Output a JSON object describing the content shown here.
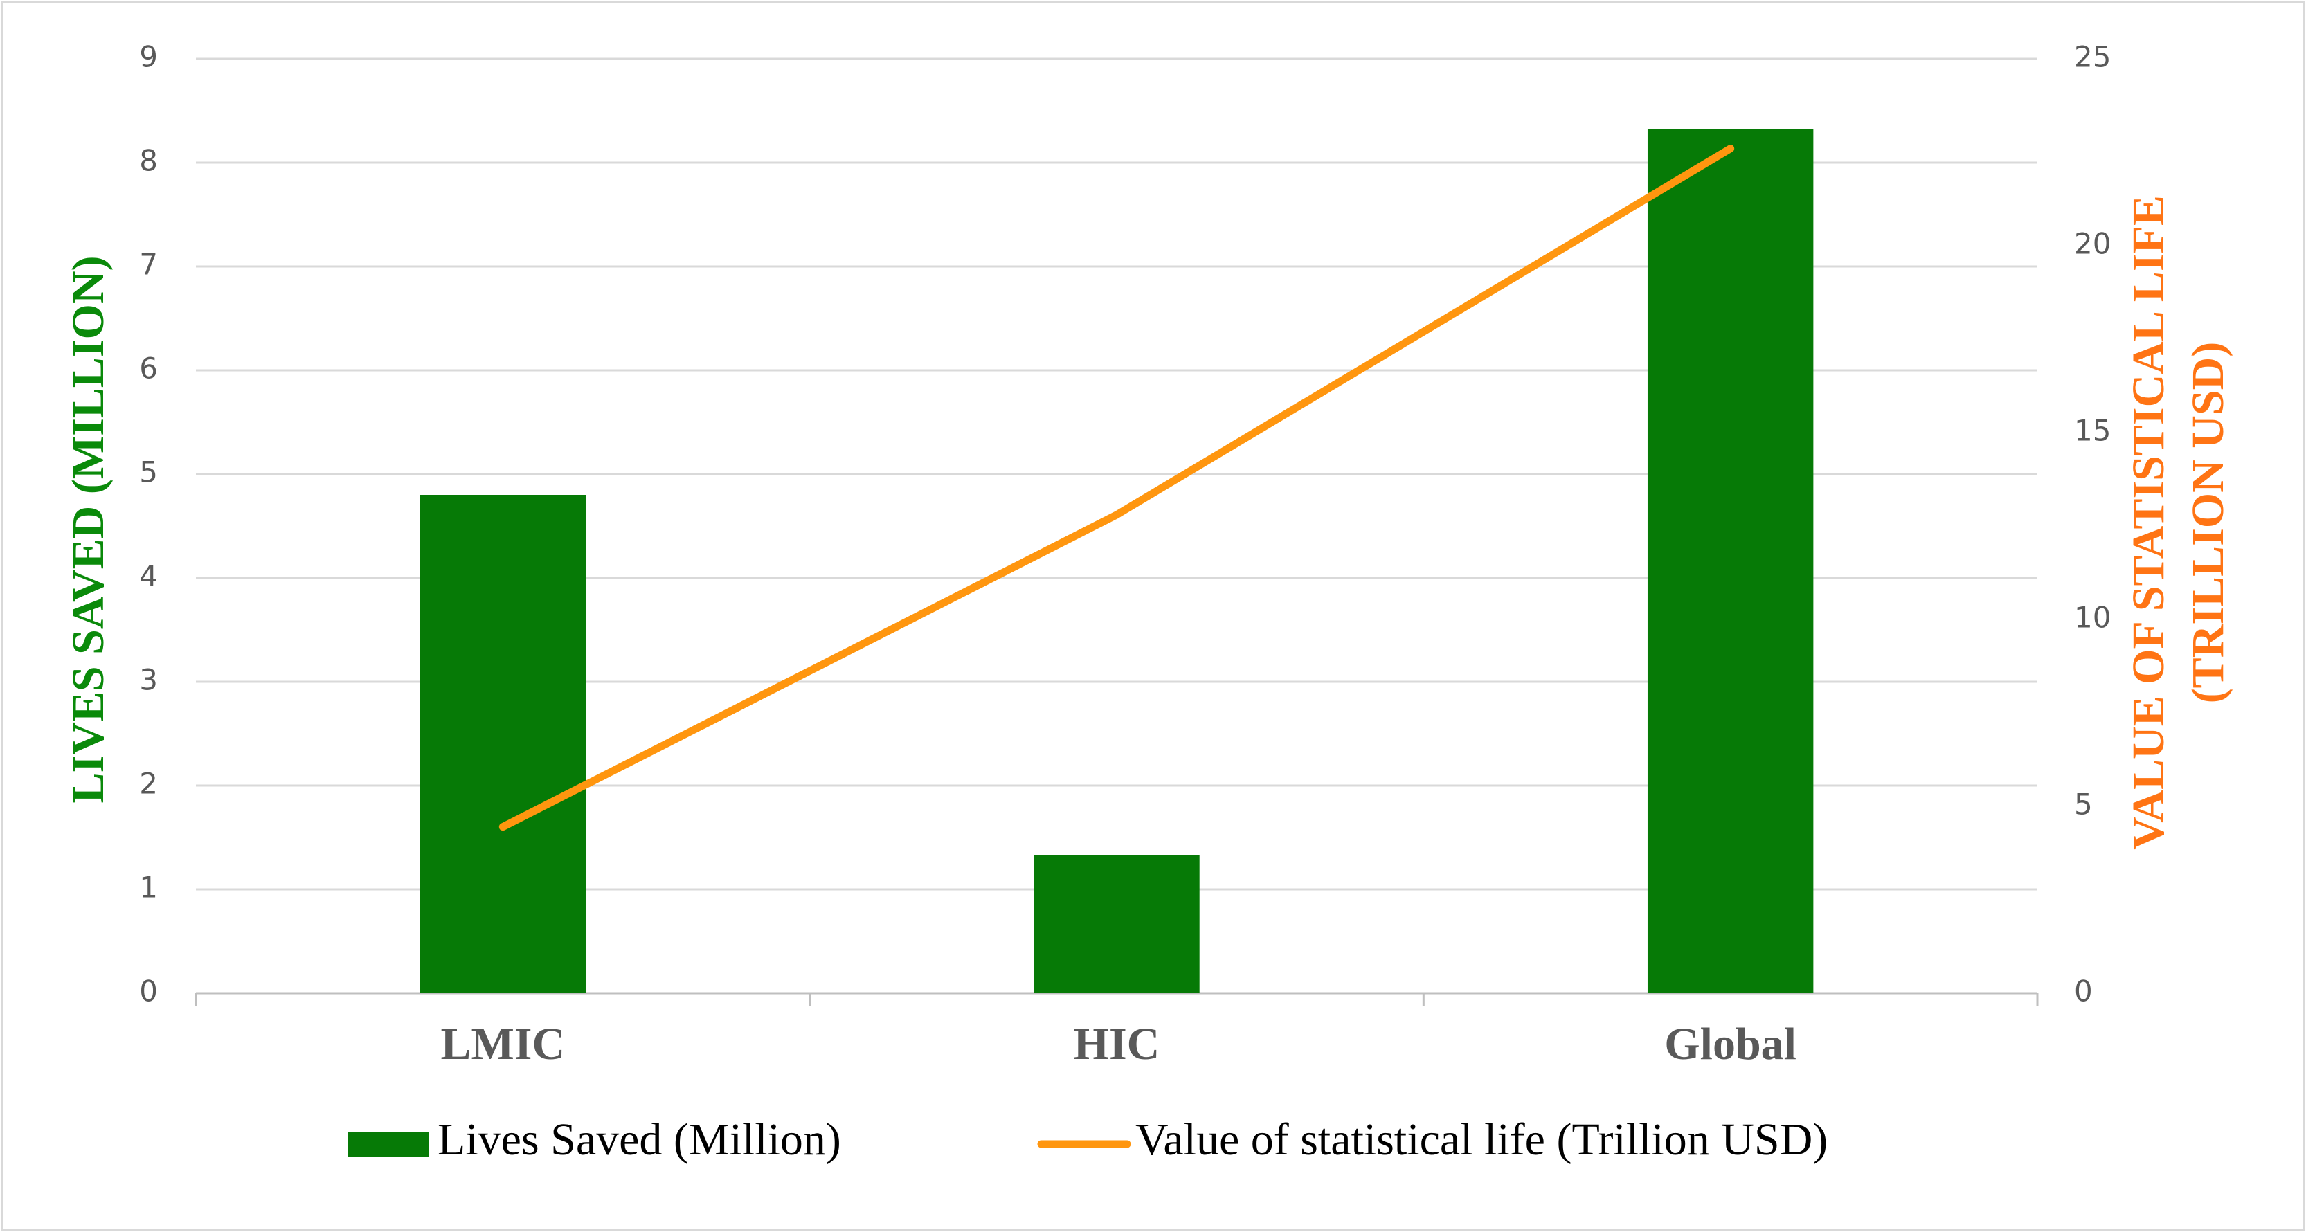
{
  "chart_data": {
    "type": "bar_line",
    "categories": [
      "LMIC",
      "HIC",
      "Global"
    ],
    "series": [
      {
        "name": "Lives Saved (Million)",
        "type": "bar",
        "color": "#067a06",
        "values": [
          4.8,
          1.33,
          8.32
        ]
      },
      {
        "name": "Value of statistical life (Trillion USD)",
        "type": "line",
        "axis": "y2",
        "color": "#ff960f",
        "values": [
          4.45,
          12.8,
          22.6
        ]
      }
    ],
    "ylim": [
      0,
      9
    ],
    "yticks": [
      0,
      1,
      2,
      3,
      4,
      5,
      6,
      7,
      8,
      9
    ],
    "y2lim": [
      0,
      25
    ],
    "y2ticks": [
      0,
      5,
      10,
      15,
      20,
      25
    ],
    "y_label": "LIVES SAVED (MILLION)",
    "y2_label": [
      "VALUE OF STATISTICAL LIFE",
      "(TRILLION USD)"
    ],
    "y_label_color": "#0a8a0a",
    "y2_label_color": "#ff7414",
    "grid": true,
    "legend": "bottom"
  }
}
